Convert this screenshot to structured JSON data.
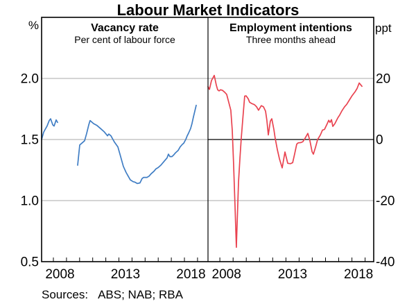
{
  "title": "Labour Market Indicators",
  "footer": {
    "sources_label": "Sources:",
    "sources_text": "ABS; NAB; RBA"
  },
  "style": {
    "grid_color": "#a9a9a9",
    "axis_color": "#000000",
    "vacancy_line_color": "#3f7dc4",
    "intentions_line_color": "#e9424f"
  },
  "chart_data": [
    {
      "type": "line",
      "panel": "left",
      "title": "Vacancy rate",
      "subtitle": "Per cent of labour force",
      "unit_label": "%",
      "unit_side": "left",
      "xlim": [
        2007.1,
        2019.8
      ],
      "ylim": [
        0.5,
        2.5
      ],
      "grid": true,
      "gridlines": [
        2.0,
        1.5,
        1.0
      ],
      "yticks": [
        {
          "value": 2.0,
          "label": "2.0"
        },
        {
          "value": 1.5,
          "label": "1.5"
        },
        {
          "value": 1.0,
          "label": "1.0"
        },
        {
          "value": 0.5,
          "label": "0.5"
        }
      ],
      "xticks": [
        2008,
        2009,
        2010,
        2011,
        2012,
        2013,
        2014,
        2015,
        2016,
        2017,
        2018,
        2019
      ],
      "xtick_labels": [
        {
          "center_year": 2008.5,
          "label": "2008"
        },
        {
          "center_year": 2013.5,
          "label": "2013"
        },
        {
          "center_year": 2018.5,
          "label": "2018"
        }
      ],
      "series": [
        {
          "name": "Vacancy rate",
          "color": "#3f7dc4",
          "segments": [
            [
              [
                2007.1,
                1.5
              ],
              [
                2007.26,
                1.56
              ],
              [
                2007.36,
                1.58
              ],
              [
                2007.52,
                1.61
              ],
              [
                2007.68,
                1.655
              ],
              [
                2007.79,
                1.67
              ],
              [
                2007.95,
                1.62
              ],
              [
                2008.05,
                1.61
              ],
              [
                2008.21,
                1.66
              ],
              [
                2008.32,
                1.64
              ]
            ],
            [
              [
                2009.85,
                1.29
              ],
              [
                2010.01,
                1.455
              ],
              [
                2010.17,
                1.47
              ],
              [
                2010.38,
                1.49
              ],
              [
                2010.54,
                1.55
              ],
              [
                2010.7,
                1.62
              ],
              [
                2010.8,
                1.655
              ],
              [
                2011.07,
                1.63
              ],
              [
                2011.33,
                1.615
              ],
              [
                2011.6,
                1.59
              ],
              [
                2011.86,
                1.565
              ],
              [
                2012.13,
                1.53
              ],
              [
                2012.23,
                1.545
              ],
              [
                2012.39,
                1.53
              ],
              [
                2012.65,
                1.48
              ],
              [
                2012.92,
                1.44
              ],
              [
                2013.08,
                1.38
              ],
              [
                2013.34,
                1.28
              ],
              [
                2013.55,
                1.23
              ],
              [
                2013.71,
                1.2
              ],
              [
                2013.87,
                1.17
              ],
              [
                2014.08,
                1.155
              ],
              [
                2014.24,
                1.15
              ],
              [
                2014.4,
                1.14
              ],
              [
                2014.61,
                1.145
              ],
              [
                2014.77,
                1.18
              ],
              [
                2014.88,
                1.19
              ],
              [
                2015.14,
                1.19
              ],
              [
                2015.3,
                1.2
              ],
              [
                2015.46,
                1.22
              ],
              [
                2015.67,
                1.24
              ],
              [
                2015.83,
                1.26
              ],
              [
                2015.99,
                1.27
              ],
              [
                2016.2,
                1.29
              ],
              [
                2016.36,
                1.31
              ],
              [
                2016.52,
                1.33
              ],
              [
                2016.68,
                1.35
              ],
              [
                2016.78,
                1.38
              ],
              [
                2016.89,
                1.36
              ],
              [
                2017.05,
                1.36
              ],
              [
                2017.15,
                1.37
              ],
              [
                2017.31,
                1.39
              ],
              [
                2017.52,
                1.41
              ],
              [
                2017.68,
                1.44
              ],
              [
                2017.84,
                1.46
              ],
              [
                2017.95,
                1.47
              ],
              [
                2018.1,
                1.5
              ],
              [
                2018.21,
                1.53
              ],
              [
                2018.31,
                1.55
              ],
              [
                2018.47,
                1.59
              ],
              [
                2018.58,
                1.63
              ],
              [
                2018.68,
                1.68
              ],
              [
                2018.79,
                1.73
              ],
              [
                2018.9,
                1.78
              ]
            ]
          ]
        }
      ]
    },
    {
      "type": "line",
      "panel": "right",
      "title": "Employment intentions",
      "subtitle": "Three months ahead",
      "unit_label": "ppt",
      "unit_side": "right",
      "xlim": [
        2007.1,
        2019.65
      ],
      "ylim": [
        -40,
        40
      ],
      "grid": true,
      "gridlines": [
        20,
        -20
      ],
      "zero_line": 0,
      "yticks": [
        {
          "value": 20,
          "label": "20"
        },
        {
          "value": 0,
          "label": "0"
        },
        {
          "value": -20,
          "label": "-20"
        },
        {
          "value": -40,
          "label": "-40"
        }
      ],
      "xticks": [
        2008,
        2009,
        2010,
        2011,
        2012,
        2013,
        2014,
        2015,
        2016,
        2017,
        2018,
        2019
      ],
      "xtick_labels": [
        {
          "center_year": 2008.5,
          "label": "2008"
        },
        {
          "center_year": 2013.5,
          "label": "2013"
        },
        {
          "center_year": 2018.5,
          "label": "2018"
        }
      ],
      "series": [
        {
          "name": "Employment intentions",
          "color": "#e9424f",
          "segments": [
            [
              [
                2007.1,
                17.3
              ],
              [
                2007.21,
                16.4
              ],
              [
                2007.36,
                19.3
              ],
              [
                2007.57,
                21.0
              ],
              [
                2007.73,
                17.8
              ],
              [
                2007.83,
                16.3
              ],
              [
                2007.94,
                15.9
              ],
              [
                2008.05,
                16.3
              ],
              [
                2008.2,
                16.1
              ],
              [
                2008.36,
                15.5
              ],
              [
                2008.51,
                14.8
              ],
              [
                2008.67,
                12.2
              ],
              [
                2008.83,
                9.6
              ],
              [
                2008.94,
                3.0
              ],
              [
                2009.04,
                -8.0
              ],
              [
                2009.15,
                -22.0
              ],
              [
                2009.25,
                -35.3
              ],
              [
                2009.41,
                -14.0
              ],
              [
                2009.52,
                -6.0
              ],
              [
                2009.62,
                0.5
              ],
              [
                2009.73,
                6.5
              ],
              [
                2009.88,
                14.2
              ],
              [
                2009.99,
                14.3
              ],
              [
                2010.15,
                13.3
              ],
              [
                2010.25,
                12.2
              ],
              [
                2010.41,
                11.8
              ],
              [
                2010.62,
                11.4
              ],
              [
                2010.78,
                10.7
              ],
              [
                2010.93,
                9.6
              ],
              [
                2011.14,
                11.1
              ],
              [
                2011.3,
                10.7
              ],
              [
                2011.46,
                9.3
              ],
              [
                2011.56,
                6.3
              ],
              [
                2011.67,
                1.5
              ],
              [
                2011.82,
                6.0
              ],
              [
                2011.93,
                6.8
              ],
              [
                2012.09,
                3.3
              ],
              [
                2012.19,
                0.4
              ],
              [
                2012.35,
                -3.3
              ],
              [
                2012.51,
                -6.3
              ],
              [
                2012.72,
                -9.3
              ],
              [
                2012.93,
                -4.1
              ],
              [
                2013.14,
                -7.8
              ],
              [
                2013.35,
                -7.9
              ],
              [
                2013.51,
                -7.6
              ],
              [
                2013.66,
                -4.8
              ],
              [
                2013.82,
                -1.5
              ],
              [
                2013.93,
                -1.1
              ],
              [
                2014.14,
                -1.0
              ],
              [
                2014.29,
                -0.7
              ],
              [
                2014.45,
                0.4
              ],
              [
                2014.66,
                2.0
              ],
              [
                2014.82,
                -0.4
              ],
              [
                2014.98,
                -4.0
              ],
              [
                2015.08,
                -4.8
              ],
              [
                2015.24,
                -2.6
              ],
              [
                2015.4,
                0.0
              ],
              [
                2015.61,
                1.5
              ],
              [
                2015.77,
                3.1
              ],
              [
                2015.92,
                3.3
              ],
              [
                2016.13,
                5.2
              ],
              [
                2016.24,
                6.3
              ],
              [
                2016.34,
                5.6
              ],
              [
                2016.45,
                6.5
              ],
              [
                2016.55,
                4.3
              ],
              [
                2016.71,
                5.2
              ],
              [
                2016.92,
                7.0
              ],
              [
                2017.08,
                8.1
              ],
              [
                2017.23,
                9.3
              ],
              [
                2017.44,
                10.7
              ],
              [
                2017.6,
                11.5
              ],
              [
                2017.86,
                13.3
              ],
              [
                2018.02,
                14.4
              ],
              [
                2018.23,
                15.6
              ],
              [
                2018.39,
                16.7
              ],
              [
                2018.55,
                18.5
              ],
              [
                2018.76,
                17.4
              ]
            ]
          ]
        }
      ]
    }
  ]
}
